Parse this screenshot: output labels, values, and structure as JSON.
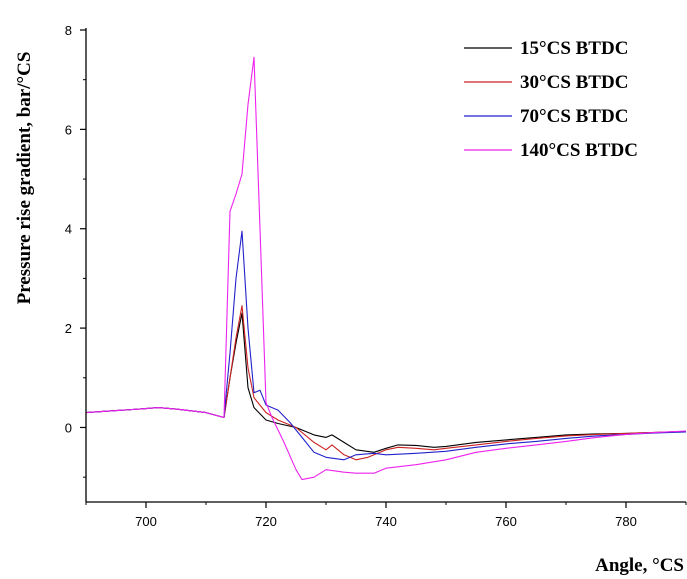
{
  "chart_data": {
    "type": "line",
    "title": "",
    "xlabel": "Angle, °CS",
    "ylabel": "Pressure rise gradient, bar/°CS",
    "xlim": [
      690,
      790
    ],
    "ylim": [
      -1.5,
      8
    ],
    "x_ticks": [
      "700",
      "720",
      "740",
      "760",
      "780"
    ],
    "y_ticks": [
      "0",
      "2",
      "4",
      "6",
      "8"
    ],
    "grid": false,
    "legend_position": "top-right",
    "series": [
      {
        "name": "15°CS BTDC",
        "color": "#000000",
        "points": [
          [
            690,
            0.3
          ],
          [
            695,
            0.34
          ],
          [
            700,
            0.38
          ],
          [
            702,
            0.4
          ],
          [
            705,
            0.37
          ],
          [
            710,
            0.3
          ],
          [
            713,
            0.2
          ],
          [
            714,
            1.0
          ],
          [
            715,
            1.7
          ],
          [
            716,
            2.3
          ],
          [
            717,
            0.8
          ],
          [
            718,
            0.4
          ],
          [
            720,
            0.15
          ],
          [
            722,
            0.08
          ],
          [
            725,
            0.0
          ],
          [
            728,
            -0.15
          ],
          [
            730,
            -0.2
          ],
          [
            731,
            -0.15
          ],
          [
            733,
            -0.3
          ],
          [
            735,
            -0.45
          ],
          [
            738,
            -0.5
          ],
          [
            740,
            -0.42
          ],
          [
            742,
            -0.35
          ],
          [
            745,
            -0.36
          ],
          [
            748,
            -0.4
          ],
          [
            750,
            -0.38
          ],
          [
            755,
            -0.3
          ],
          [
            760,
            -0.25
          ],
          [
            765,
            -0.2
          ],
          [
            770,
            -0.15
          ],
          [
            775,
            -0.13
          ],
          [
            780,
            -0.12
          ],
          [
            785,
            -0.1
          ],
          [
            790,
            -0.08
          ]
        ]
      },
      {
        "name": "30°CS BTDC",
        "color": "#cc2222",
        "points": [
          [
            690,
            0.3
          ],
          [
            695,
            0.34
          ],
          [
            700,
            0.38
          ],
          [
            702,
            0.4
          ],
          [
            705,
            0.37
          ],
          [
            710,
            0.3
          ],
          [
            713,
            0.2
          ],
          [
            714,
            1.0
          ],
          [
            715,
            1.8
          ],
          [
            716,
            2.45
          ],
          [
            717,
            1.2
          ],
          [
            718,
            0.6
          ],
          [
            720,
            0.3
          ],
          [
            722,
            0.15
          ],
          [
            725,
            0.0
          ],
          [
            728,
            -0.3
          ],
          [
            730,
            -0.45
          ],
          [
            731,
            -0.35
          ],
          [
            733,
            -0.55
          ],
          [
            735,
            -0.65
          ],
          [
            737,
            -0.6
          ],
          [
            738,
            -0.55
          ],
          [
            740,
            -0.45
          ],
          [
            742,
            -0.4
          ],
          [
            745,
            -0.42
          ],
          [
            748,
            -0.45
          ],
          [
            750,
            -0.42
          ],
          [
            755,
            -0.35
          ],
          [
            760,
            -0.28
          ],
          [
            765,
            -0.22
          ],
          [
            770,
            -0.17
          ],
          [
            775,
            -0.14
          ],
          [
            780,
            -0.12
          ],
          [
            785,
            -0.1
          ],
          [
            790,
            -0.08
          ]
        ]
      },
      {
        "name": "70°CS BTDC",
        "color": "#2222cc",
        "points": [
          [
            690,
            0.3
          ],
          [
            695,
            0.34
          ],
          [
            700,
            0.38
          ],
          [
            702,
            0.4
          ],
          [
            705,
            0.37
          ],
          [
            710,
            0.3
          ],
          [
            713,
            0.2
          ],
          [
            714,
            1.5
          ],
          [
            715,
            3.0
          ],
          [
            716,
            3.95
          ],
          [
            717,
            2.0
          ],
          [
            718,
            0.7
          ],
          [
            719,
            0.75
          ],
          [
            720,
            0.45
          ],
          [
            722,
            0.35
          ],
          [
            724,
            0.1
          ],
          [
            726,
            -0.2
          ],
          [
            728,
            -0.5
          ],
          [
            730,
            -0.6
          ],
          [
            733,
            -0.65
          ],
          [
            735,
            -0.55
          ],
          [
            738,
            -0.52
          ],
          [
            740,
            -0.55
          ],
          [
            745,
            -0.52
          ],
          [
            750,
            -0.48
          ],
          [
            755,
            -0.4
          ],
          [
            760,
            -0.33
          ],
          [
            765,
            -0.28
          ],
          [
            770,
            -0.22
          ],
          [
            775,
            -0.17
          ],
          [
            780,
            -0.14
          ],
          [
            785,
            -0.11
          ],
          [
            790,
            -0.09
          ]
        ]
      },
      {
        "name": "140°CS BTDC",
        "color": "#ee22ee",
        "points": [
          [
            690,
            0.3
          ],
          [
            695,
            0.34
          ],
          [
            700,
            0.38
          ],
          [
            702,
            0.4
          ],
          [
            705,
            0.37
          ],
          [
            710,
            0.3
          ],
          [
            713,
            0.2
          ],
          [
            714,
            4.35
          ],
          [
            715,
            4.7
          ],
          [
            716,
            5.1
          ],
          [
            717,
            6.5
          ],
          [
            718,
            7.45
          ],
          [
            719,
            4.0
          ],
          [
            720,
            0.5
          ],
          [
            721,
            0.2
          ],
          [
            723,
            -0.3
          ],
          [
            725,
            -0.85
          ],
          [
            726,
            -1.05
          ],
          [
            728,
            -1.0
          ],
          [
            730,
            -0.85
          ],
          [
            733,
            -0.9
          ],
          [
            735,
            -0.92
          ],
          [
            738,
            -0.92
          ],
          [
            740,
            -0.82
          ],
          [
            745,
            -0.75
          ],
          [
            750,
            -0.65
          ],
          [
            755,
            -0.5
          ],
          [
            760,
            -0.42
          ],
          [
            765,
            -0.35
          ],
          [
            770,
            -0.28
          ],
          [
            775,
            -0.2
          ],
          [
            780,
            -0.14
          ],
          [
            785,
            -0.1
          ],
          [
            790,
            -0.07
          ]
        ]
      }
    ]
  }
}
